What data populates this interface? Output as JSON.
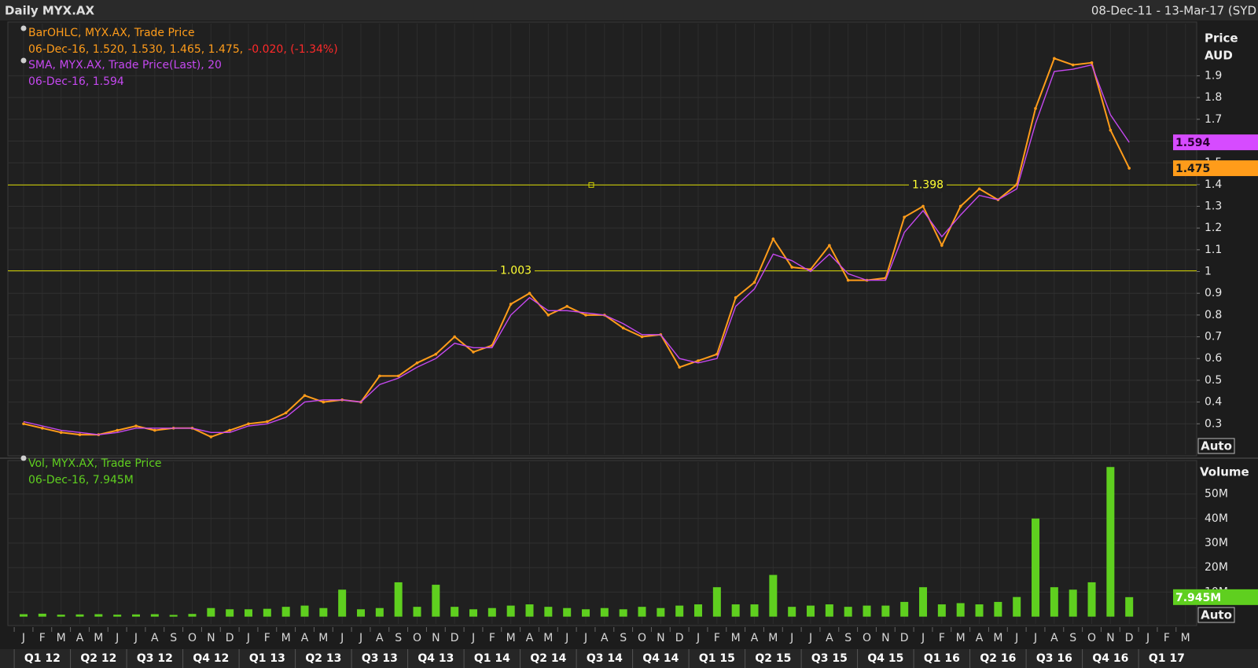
{
  "header": {
    "title": "Daily MYX.AX",
    "range": "08-Dec-11 - 13-Mar-17 (SYD"
  },
  "chart_data": [
    {
      "type": "line",
      "axis_title": "Price",
      "axis_unit": "AUD",
      "ylim": [
        0.16,
        2.14
      ],
      "yticks": [
        0.3,
        0.4,
        0.5,
        0.6,
        0.7,
        0.8,
        0.9,
        1,
        1.1,
        1.2,
        1.3,
        1.4,
        1.5,
        1.6,
        1.7,
        1.8,
        1.9
      ],
      "grid": true,
      "series": [
        {
          "name": "BarOHLC, MYX.AX, Trade Price",
          "color": "#ff9c1a",
          "values": [
            0.3,
            0.28,
            0.26,
            0.25,
            0.25,
            0.27,
            0.29,
            0.27,
            0.28,
            0.28,
            0.24,
            0.27,
            0.3,
            0.31,
            0.35,
            0.43,
            0.4,
            0.41,
            0.4,
            0.52,
            0.52,
            0.58,
            0.62,
            0.7,
            0.63,
            0.66,
            0.85,
            0.9,
            0.8,
            0.84,
            0.8,
            0.8,
            0.74,
            0.7,
            0.71,
            0.56,
            0.59,
            0.62,
            0.88,
            0.95,
            1.15,
            1.02,
            1.01,
            1.12,
            0.96,
            0.96,
            0.97,
            1.25,
            1.3,
            1.12,
            1.3,
            1.38,
            1.33,
            1.4,
            1.75,
            1.98,
            1.95,
            1.96,
            1.65,
            1.475,
            null,
            null,
            null
          ]
        },
        {
          "name": "SMA, MYX.AX, Trade Price(Last),  20",
          "color": "#c548f0",
          "values": [
            0.31,
            0.29,
            0.27,
            0.26,
            0.25,
            0.26,
            0.28,
            0.28,
            0.28,
            0.28,
            0.26,
            0.26,
            0.29,
            0.3,
            0.33,
            0.4,
            0.41,
            0.41,
            0.4,
            0.48,
            0.51,
            0.56,
            0.6,
            0.67,
            0.65,
            0.65,
            0.8,
            0.88,
            0.82,
            0.82,
            0.81,
            0.8,
            0.76,
            0.71,
            0.71,
            0.6,
            0.58,
            0.6,
            0.84,
            0.92,
            1.08,
            1.05,
            1.0,
            1.08,
            0.99,
            0.96,
            0.96,
            1.18,
            1.28,
            1.16,
            1.26,
            1.35,
            1.33,
            1.38,
            1.68,
            1.92,
            1.93,
            1.95,
            1.72,
            1.594,
            null,
            null,
            null
          ]
        }
      ],
      "legend_details": [
        "06-Dec-16, 1.520, 1.530, 1.465, 1.475,",
        "06-Dec-16, 1.594"
      ],
      "change": "-0.020, (-1.34%)",
      "change_color": "#ff2a2a",
      "hlines": [
        {
          "value": 1.398
        },
        {
          "value": 1.003
        }
      ],
      "hline_color": "#d4d400",
      "last_markers": [
        {
          "value": 1.594,
          "color": "#d64bff"
        },
        {
          "value": 1.475,
          "color": "#ff9c1a"
        }
      ],
      "button": "Auto"
    },
    {
      "type": "bar",
      "series_name": "Vol, MYX.AX, Trade Price",
      "legend_detail": "06-Dec-16, 7.945M",
      "axis_title": "Volume",
      "color": "#5fcf1f",
      "ylim": [
        -3000000,
        63000000
      ],
      "yticks": [
        {
          "value": 10000000,
          "label": "10M"
        },
        {
          "value": 20000000,
          "label": "20M"
        },
        {
          "value": 30000000,
          "label": "30M"
        },
        {
          "value": 40000000,
          "label": "40M"
        },
        {
          "value": 50000000,
          "label": "50M"
        }
      ],
      "categories": [
        "J",
        "F",
        "M",
        "A",
        "M",
        "J",
        "J",
        "A",
        "S",
        "O",
        "N",
        "D",
        "J",
        "F",
        "M",
        "A",
        "M",
        "J",
        "J",
        "A",
        "S",
        "O",
        "N",
        "D",
        "J",
        "F",
        "M",
        "A",
        "M",
        "J",
        "J",
        "A",
        "S",
        "O",
        "N",
        "D",
        "J",
        "F",
        "M",
        "A",
        "M",
        "J",
        "J",
        "A",
        "S",
        "O",
        "N",
        "D",
        "J",
        "F",
        "M",
        "A",
        "M",
        "J",
        "J",
        "A",
        "S",
        "O",
        "N",
        "D",
        "J",
        "F",
        "M"
      ],
      "quarters": [
        "Q1 12",
        "Q2 12",
        "Q3 12",
        "Q4 12",
        "Q1 13",
        "Q2 13",
        "Q3 13",
        "Q4 13",
        "Q1 14",
        "Q2 14",
        "Q3 14",
        "Q4 14",
        "Q1 15",
        "Q2 15",
        "Q3 15",
        "Q4 15",
        "Q1 16",
        "Q2 16",
        "Q3 16",
        "Q4 16",
        "Q1 17"
      ],
      "values": [
        1000000,
        1200000,
        800000,
        900000,
        1000000,
        800000,
        900000,
        1000000,
        700000,
        1100000,
        3500000,
        3000000,
        3000000,
        3200000,
        4000000,
        4500000,
        3500000,
        11000000,
        3000000,
        3500000,
        14000000,
        4000000,
        13000000,
        4000000,
        3000000,
        3500000,
        4500000,
        5000000,
        4000000,
        3500000,
        3000000,
        3500000,
        3000000,
        4000000,
        3500000,
        4500000,
        5000000,
        12000000,
        5000000,
        5000000,
        17000000,
        4000000,
        4500000,
        5000000,
        4000000,
        4500000,
        4500000,
        6000000,
        12000000,
        5000000,
        5500000,
        5000000,
        6000000,
        8000000,
        40000000,
        12000000,
        11000000,
        14000000,
        61000000,
        7945000,
        null,
        null,
        null
      ],
      "last_value": {
        "value": 7945000,
        "label": "7.945M"
      },
      "button": "Auto"
    }
  ]
}
